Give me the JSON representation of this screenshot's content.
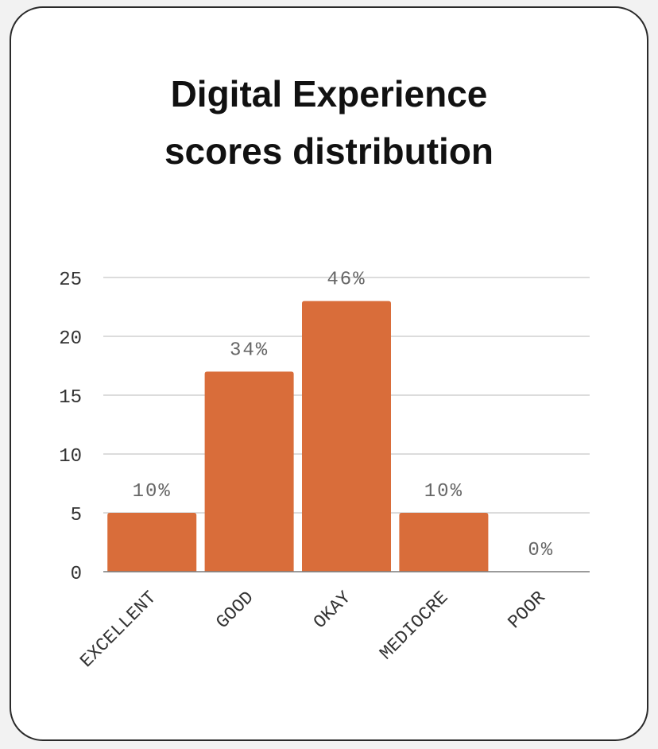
{
  "chart_data": {
    "type": "bar",
    "title_lines": [
      "Digital Experience",
      "scores distribution"
    ],
    "categories": [
      "EXCELLENT",
      "GOOD",
      "OKAY",
      "MEDIOCRE",
      "POOR"
    ],
    "values": [
      5,
      17,
      23,
      5,
      0
    ],
    "data_labels": [
      "10%",
      "34%",
      "46%",
      "10%",
      "0%"
    ],
    "yticks": [
      0,
      5,
      10,
      15,
      20,
      25
    ],
    "ylim": [
      0,
      25
    ],
    "grid": true,
    "colors": {
      "bar": "#d96d3a",
      "grid": "#c8c8c8",
      "axis": "#7a7a7a",
      "tick_text": "#333333",
      "label_text": "#666666"
    }
  }
}
